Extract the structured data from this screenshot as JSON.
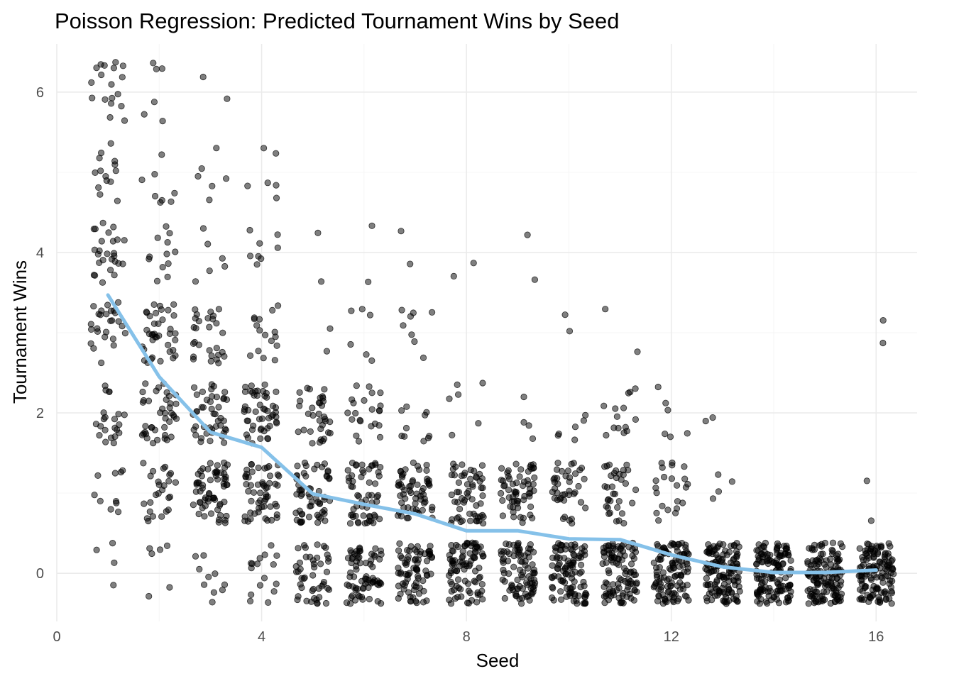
{
  "chart_data": {
    "type": "scatter",
    "title": "Poisson Regression: Predicted Tournament Wins by Seed",
    "xlabel": "Seed",
    "ylabel": "Tournament Wins",
    "xlim": [
      0,
      16.8
    ],
    "ylim": [
      -0.6,
      6.6
    ],
    "x_ticks": [
      0,
      4,
      8,
      12,
      16
    ],
    "y_ticks": [
      0,
      2,
      4,
      6
    ],
    "grid": true,
    "legend": "none",
    "colors": {
      "points": "#000000",
      "fit_line": "#85C1E9",
      "grid": "#ebebeb"
    },
    "points_style": {
      "alpha": 0.5,
      "jitter_width": 0.4,
      "jitter_height": 0.4
    },
    "observations": [
      {
        "seed": 1,
        "counts": [
          4,
          10,
          22,
          26,
          26,
          14,
          18
        ]
      },
      {
        "seed": 2,
        "counts": [
          6,
          26,
          40,
          38,
          12,
          8,
          6
        ]
      },
      {
        "seed": 3,
        "counts": [
          10,
          62,
          44,
          28,
          6,
          6,
          2
        ]
      },
      {
        "seed": 4,
        "counts": [
          16,
          56,
          50,
          16,
          8,
          6,
          0
        ]
      },
      {
        "seed": 5,
        "counts": [
          46,
          58,
          34,
          2,
          2,
          0,
          0
        ]
      },
      {
        "seed": 6,
        "counts": [
          72,
          56,
          22,
          6,
          2,
          0,
          0
        ]
      },
      {
        "seed": 7,
        "counts": [
          76,
          60,
          10,
          8,
          2,
          0,
          0
        ]
      },
      {
        "seed": 8,
        "counts": [
          88,
          58,
          6,
          0,
          2,
          0,
          0
        ]
      },
      {
        "seed": 9,
        "counts": [
          86,
          60,
          4,
          0,
          2,
          0,
          0
        ]
      },
      {
        "seed": 10,
        "counts": [
          100,
          40,
          6,
          2,
          0,
          0,
          0
        ]
      },
      {
        "seed": 11,
        "counts": [
          100,
          34,
          14,
          2,
          0,
          0,
          0
        ]
      },
      {
        "seed": 12,
        "counts": [
          112,
          22,
          6,
          0,
          0,
          0,
          0
        ]
      },
      {
        "seed": 13,
        "counts": [
          132,
          4,
          2,
          0,
          0,
          0,
          0
        ]
      },
      {
        "seed": 14,
        "counts": [
          136,
          0,
          0,
          0,
          0,
          0,
          0
        ]
      },
      {
        "seed": 15,
        "counts": [
          136,
          0,
          0,
          0,
          0,
          0,
          0
        ]
      },
      {
        "seed": 16,
        "counts": [
          130,
          2,
          0,
          2,
          0,
          0,
          0
        ]
      }
    ],
    "fit_line": {
      "x": [
        1,
        2,
        3,
        4,
        5,
        6,
        7,
        8,
        9,
        10,
        11,
        12,
        13,
        14,
        15,
        16
      ],
      "y": [
        3.47,
        2.45,
        1.76,
        1.57,
        0.99,
        0.86,
        0.74,
        0.53,
        0.53,
        0.43,
        0.42,
        0.23,
        0.08,
        0.01,
        0.01,
        0.04
      ]
    }
  }
}
